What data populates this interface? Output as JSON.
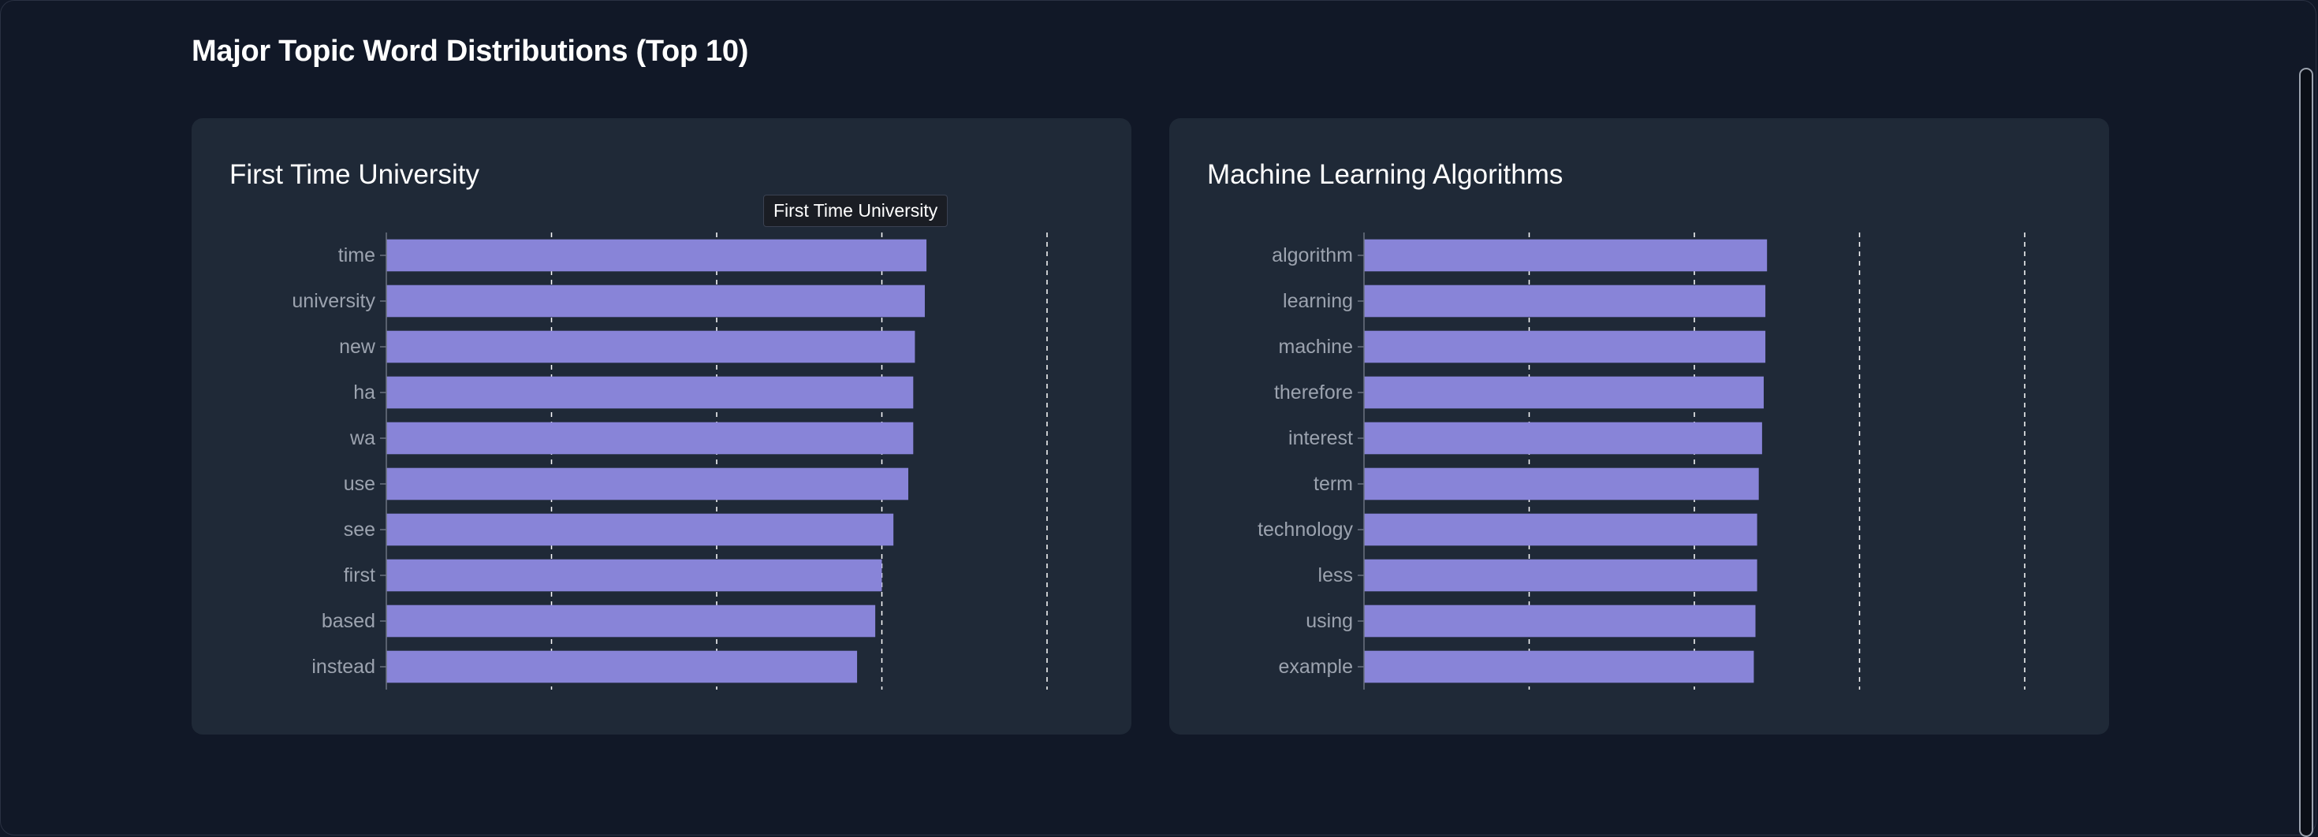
{
  "page": {
    "title": "Major Topic Word Distributions (Top 10)"
  },
  "colors": {
    "background": "#111827",
    "card": "#1f2937",
    "bar": "#8884d8",
    "tick_label": "#9ca3af",
    "grid": "#ffffff"
  },
  "tooltip": {
    "text": "First Time University"
  },
  "chart_data": [
    {
      "type": "bar",
      "orientation": "horizontal",
      "title": "First Time University",
      "categories": [
        "time",
        "university",
        "new",
        "ha",
        "wa",
        "use",
        "see",
        "first",
        "based",
        "instead"
      ],
      "values": [
        0.0327,
        0.0326,
        0.032,
        0.0319,
        0.0319,
        0.0316,
        0.0307,
        0.03,
        0.0296,
        0.0285
      ],
      "xlim": [
        0,
        0.04
      ],
      "grid": true
    },
    {
      "type": "bar",
      "orientation": "horizontal",
      "title": "Machine Learning Algorithms",
      "categories": [
        "algorithm",
        "learning",
        "machine",
        "therefore",
        "interest",
        "term",
        "technology",
        "less",
        "using",
        "example"
      ],
      "values": [
        0.0244,
        0.0243,
        0.0243,
        0.0242,
        0.0241,
        0.0239,
        0.0238,
        0.0238,
        0.0237,
        0.0236
      ],
      "xlim": [
        0,
        0.04
      ],
      "grid": true
    }
  ]
}
